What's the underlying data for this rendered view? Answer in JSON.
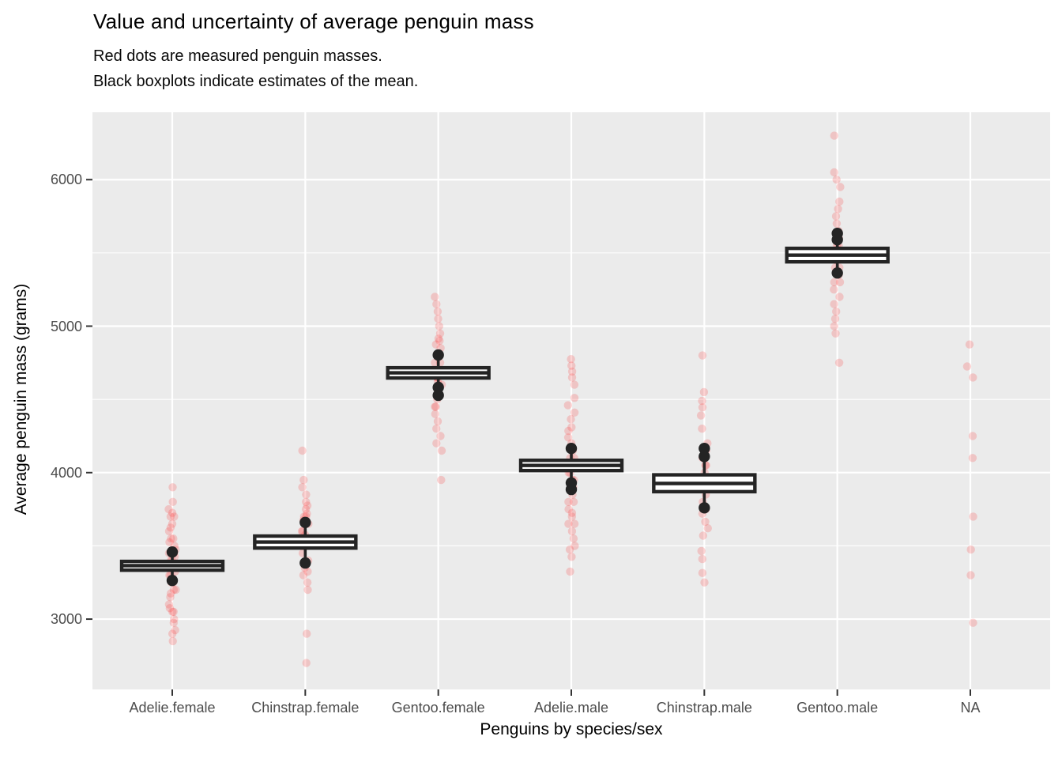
{
  "chart": {
    "title": "Value and uncertainty of average penguin mass",
    "subtitle_lines": [
      "Red dots are measured penguin masses.",
      "Black boxplots indicate estimates of the mean."
    ],
    "x_axis_title": "Penguins by species/sex",
    "y_axis_title": "Average penguin mass (grams)"
  },
  "chart_data": {
    "type": "scatter+boxplot",
    "title": "Value and uncertainty of average penguin mass",
    "subtitle": "Red dots are measured penguin masses. Black boxplots indicate estimates of the mean.",
    "xlabel": "Penguins by species/sex",
    "ylabel": "Average penguin mass (grams)",
    "categories": [
      "Adelie.female",
      "Chinstrap.female",
      "Gentoo.female",
      "Adelie.male",
      "Chinstrap.male",
      "Gentoo.male",
      "NA"
    ],
    "y_ticks": [
      3000,
      4000,
      5000,
      6000
    ],
    "y_minor_ticks": [
      3500,
      4500,
      5500
    ],
    "ylim": [
      2520,
      6460
    ],
    "grid": "white-on-gray, major and minor horizontal, major vertical at categories",
    "legend_position": "none",
    "point_units": "grams",
    "groups": [
      {
        "category": "Adelie.female",
        "points": [
          2850,
          2900,
          2925,
          2975,
          3000,
          3050,
          3050,
          3075,
          3100,
          3150,
          3175,
          3200,
          3200,
          3250,
          3250,
          3300,
          3300,
          3325,
          3350,
          3350,
          3400,
          3400,
          3425,
          3450,
          3450,
          3475,
          3500,
          3525,
          3550,
          3550,
          3600,
          3625,
          3650,
          3700,
          3700,
          3725,
          3750,
          3800,
          3900
        ],
        "boxplot": {
          "q1": 3334,
          "median": 3365,
          "q3": 3394,
          "outliers_high": [
            3458
          ],
          "outliers_low": [
            3264
          ]
        }
      },
      {
        "category": "Chinstrap.female",
        "points": [
          2700,
          2900,
          3200,
          3250,
          3300,
          3325,
          3350,
          3400,
          3450,
          3500,
          3525,
          3550,
          3575,
          3600,
          3600,
          3650,
          3675,
          3700,
          3700,
          3720,
          3750,
          3775,
          3800,
          3850,
          3900,
          3950,
          4150
        ],
        "boxplot": {
          "q1": 3485,
          "median": 3526,
          "q3": 3567,
          "outliers_high": [
            3660
          ],
          "outliers_low": [
            3383
          ]
        }
      },
      {
        "category": "Gentoo.female",
        "points": [
          3950,
          4150,
          4200,
          4250,
          4300,
          4350,
          4400,
          4450,
          4450,
          4500,
          4550,
          4600,
          4625,
          4650,
          4650,
          4700,
          4700,
          4750,
          4750,
          4800,
          4850,
          4875,
          4900,
          4915,
          4950,
          5000,
          5050,
          5100,
          5150,
          5200
        ],
        "boxplot": {
          "q1": 4646,
          "median": 4681,
          "q3": 4716,
          "outliers_high": [
            4803
          ],
          "outliers_low": [
            4582,
            4528
          ]
        }
      },
      {
        "category": "Adelie.male",
        "points": [
          3325,
          3425,
          3475,
          3500,
          3550,
          3600,
          3650,
          3650,
          3700,
          3725,
          3750,
          3800,
          3800,
          3850,
          3900,
          3900,
          3950,
          3950,
          4000,
          4000,
          4050,
          4050,
          4100,
          4100,
          4150,
          4200,
          4240,
          4285,
          4310,
          4365,
          4410,
          4460,
          4510,
          4600,
          4650,
          4690,
          4730,
          4775
        ],
        "boxplot": {
          "q1": 4014,
          "median": 4049,
          "q3": 4084,
          "outliers_high": [
            4165
          ],
          "outliers_low": [
            3930,
            3885
          ]
        }
      },
      {
        "category": "Chinstrap.male",
        "points": [
          3250,
          3315,
          3410,
          3465,
          3570,
          3620,
          3665,
          3720,
          3750,
          3800,
          3850,
          3900,
          3950,
          3950,
          4000,
          4050,
          4050,
          4100,
          4150,
          4200,
          4300,
          4390,
          4445,
          4490,
          4550,
          4800
        ],
        "boxplot": {
          "q1": 3870,
          "median": 3926,
          "q3": 3985,
          "outliers_high": [
            4110,
            4165
          ],
          "outliers_low": [
            3760
          ]
        }
      },
      {
        "category": "Gentoo.male",
        "points": [
          4750,
          4950,
          5000,
          5050,
          5100,
          5150,
          5200,
          5250,
          5300,
          5300,
          5350,
          5400,
          5400,
          5450,
          5500,
          5500,
          5550,
          5550,
          5600,
          5650,
          5700,
          5750,
          5800,
          5850,
          5950,
          6000,
          6050,
          6300
        ],
        "boxplot": {
          "q1": 5439,
          "median": 5485,
          "q3": 5531,
          "outliers_high": [
            5590,
            5633
          ],
          "outliers_low": [
            5363
          ]
        }
      },
      {
        "category": "NA",
        "points": [
          2975,
          3300,
          3475,
          3700,
          4100,
          4250,
          4650,
          4725,
          4875
        ],
        "boxplot": null
      }
    ],
    "colors": {
      "panel_background": "#EBEBEB",
      "gridline": "#FFFFFF",
      "point_color": "#FC3C3C",
      "point_alpha": 0.22,
      "box_color": "#242424",
      "box_fill": "#FFFFFF",
      "tick_label_color": "#4D4D4D",
      "tick_mark_color": "#333333"
    }
  }
}
